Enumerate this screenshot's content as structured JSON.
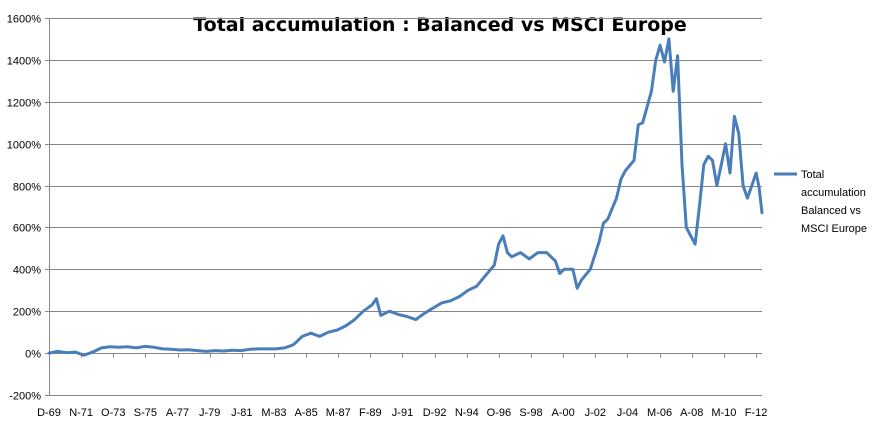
{
  "chart_data": {
    "type": "line",
    "title": "Total accumulation : Balanced vs MSCI Europe",
    "xlabel": "",
    "ylabel": "",
    "ylim": [
      -200,
      1600
    ],
    "y_ticks": [
      -200,
      0,
      200,
      400,
      600,
      800,
      1000,
      1200,
      1400,
      1600
    ],
    "y_tick_labels": [
      "-200%",
      "0%",
      "200%",
      "400%",
      "600%",
      "800%",
      "1000%",
      "1200%",
      "1400%",
      "1600%"
    ],
    "x_tick_labels": [
      "D-69",
      "N-71",
      "O-73",
      "S-75",
      "A-77",
      "J-79",
      "J-81",
      "M-83",
      "A-85",
      "M-87",
      "F-89",
      "J-91",
      "D-92",
      "N-94",
      "O-96",
      "S-98",
      "A-00",
      "J-02",
      "J-04",
      "M-06",
      "A-08",
      "M-10",
      "F-12"
    ],
    "grid": true,
    "legend_position": "right",
    "series": [
      {
        "name": "Total accumulation Balanced vs MSCI Europe",
        "color": "#4a7ebb",
        "points": [
          [
            0,
            0
          ],
          [
            6,
            8
          ],
          [
            12,
            2
          ],
          [
            18,
            5
          ],
          [
            24,
            -10
          ],
          [
            30,
            5
          ],
          [
            36,
            25
          ],
          [
            42,
            30
          ],
          [
            48,
            28
          ],
          [
            54,
            30
          ],
          [
            60,
            25
          ],
          [
            66,
            32
          ],
          [
            72,
            28
          ],
          [
            78,
            20
          ],
          [
            84,
            18
          ],
          [
            90,
            15
          ],
          [
            96,
            16
          ],
          [
            102,
            12
          ],
          [
            108,
            8
          ],
          [
            114,
            12
          ],
          [
            120,
            10
          ],
          [
            126,
            14
          ],
          [
            132,
            12
          ],
          [
            138,
            18
          ],
          [
            144,
            20
          ],
          [
            150,
            20
          ],
          [
            156,
            20
          ],
          [
            162,
            25
          ],
          [
            168,
            40
          ],
          [
            174,
            80
          ],
          [
            180,
            95
          ],
          [
            186,
            80
          ],
          [
            192,
            100
          ],
          [
            198,
            110
          ],
          [
            204,
            130
          ],
          [
            210,
            160
          ],
          [
            216,
            200
          ],
          [
            222,
            230
          ],
          [
            225,
            260
          ],
          [
            228,
            180
          ],
          [
            234,
            200
          ],
          [
            240,
            185
          ],
          [
            246,
            175
          ],
          [
            252,
            160
          ],
          [
            258,
            190
          ],
          [
            264,
            215
          ],
          [
            270,
            240
          ],
          [
            276,
            250
          ],
          [
            282,
            270
          ],
          [
            288,
            300
          ],
          [
            294,
            320
          ],
          [
            300,
            370
          ],
          [
            306,
            420
          ],
          [
            309,
            520
          ],
          [
            312,
            560
          ],
          [
            315,
            480
          ],
          [
            318,
            460
          ],
          [
            324,
            480
          ],
          [
            330,
            450
          ],
          [
            336,
            480
          ],
          [
            342,
            480
          ],
          [
            348,
            440
          ],
          [
            351,
            380
          ],
          [
            354,
            400
          ],
          [
            360,
            400
          ],
          [
            363,
            310
          ],
          [
            366,
            350
          ],
          [
            372,
            400
          ],
          [
            378,
            530
          ],
          [
            381,
            620
          ],
          [
            384,
            640
          ],
          [
            390,
            740
          ],
          [
            393,
            830
          ],
          [
            396,
            870
          ],
          [
            402,
            920
          ],
          [
            405,
            1090
          ],
          [
            408,
            1100
          ],
          [
            414,
            1250
          ],
          [
            417,
            1400
          ],
          [
            420,
            1470
          ],
          [
            423,
            1390
          ],
          [
            426,
            1500
          ],
          [
            429,
            1250
          ],
          [
            432,
            1420
          ],
          [
            435,
            900
          ],
          [
            438,
            600
          ],
          [
            441,
            560
          ],
          [
            444,
            520
          ],
          [
            447,
            700
          ],
          [
            450,
            900
          ],
          [
            453,
            940
          ],
          [
            456,
            920
          ],
          [
            459,
            800
          ],
          [
            462,
            900
          ],
          [
            465,
            1000
          ],
          [
            468,
            860
          ],
          [
            471,
            1130
          ],
          [
            474,
            1050
          ],
          [
            477,
            800
          ],
          [
            480,
            740
          ],
          [
            483,
            800
          ],
          [
            486,
            860
          ],
          [
            488,
            790
          ],
          [
            490,
            670
          ]
        ]
      }
    ]
  }
}
